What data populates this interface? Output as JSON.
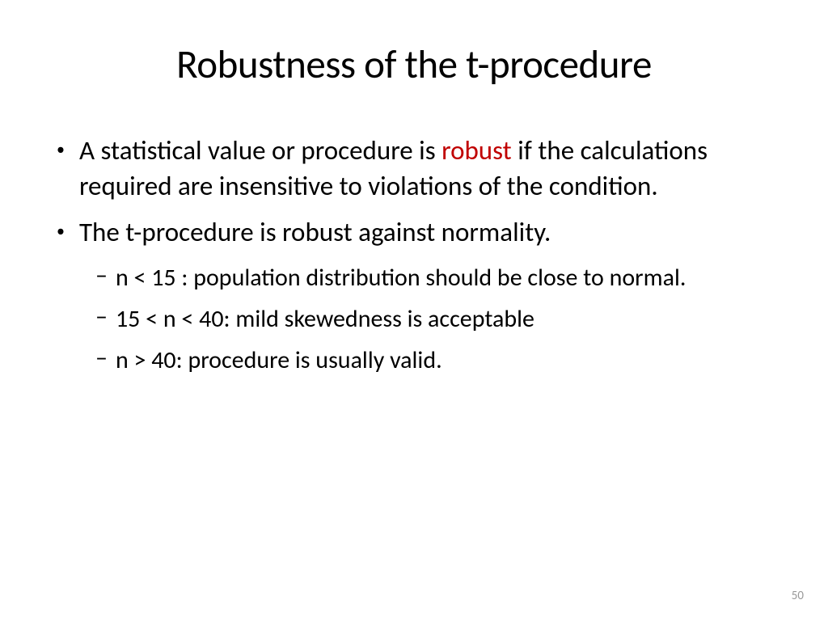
{
  "slide": {
    "title": "Robustness of the t-procedure",
    "page_number": "50",
    "bullets": {
      "b1_pre": "A statistical value or procedure is ",
      "b1_em": "robust",
      "b1_post": " if the calculations required are insensitive to violations of the condition.",
      "b2": "The t-procedure is robust against normality.",
      "b2a": "n < 15 : population distribution should be close to normal.",
      "b2b": "15 < n < 40: mild skewedness is acceptable",
      "b2c": "n > 40: procedure is usually valid."
    }
  },
  "style": {
    "background_color": "#ffffff",
    "text_color": "#000000",
    "emphasis_color": "#c00000",
    "page_number_color": "#999999",
    "title_fontsize": 49,
    "body_fontsize": 33,
    "sub_fontsize": 30
  }
}
